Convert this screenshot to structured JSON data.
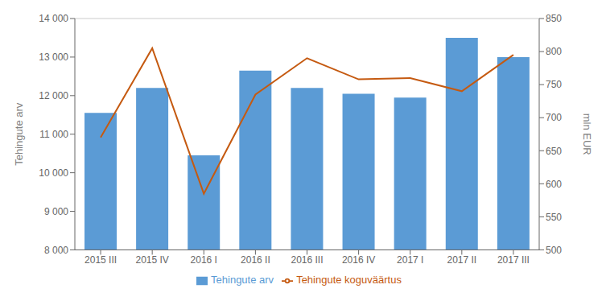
{
  "chart_data": {
    "type": "bar",
    "categories": [
      "2015 III",
      "2015 IV",
      "2016 I",
      "2016 II",
      "2016 III",
      "2016 IV",
      "2017 I",
      "2017 II",
      "2017 III"
    ],
    "series": [
      {
        "name": "Tehingute arv",
        "type": "bar",
        "color": "#5B9BD5",
        "values": [
          11550,
          12200,
          10450,
          12650,
          12200,
          12050,
          11950,
          13500,
          13000
        ]
      },
      {
        "name": "Tehingute koguväärtus",
        "type": "line",
        "color": "#C55A11",
        "axis": "y2",
        "values": [
          670,
          805,
          585,
          735,
          790,
          758,
          760,
          740,
          795
        ]
      }
    ],
    "ylabel": "Tehingute arv",
    "y2label": "mln EUR",
    "ylim": [
      8000,
      14000
    ],
    "yticks": [
      {
        "value": 8000,
        "label": "8 000"
      },
      {
        "value": 9000,
        "label": "9 000"
      },
      {
        "value": 10000,
        "label": "10 000"
      },
      {
        "value": 11000,
        "label": "11 000"
      },
      {
        "value": 12000,
        "label": "12 000"
      },
      {
        "value": 13000,
        "label": "13 000"
      },
      {
        "value": 14000,
        "label": "14 000"
      }
    ],
    "y2lim": [
      500,
      850
    ],
    "y2ticks": [
      500,
      550,
      600,
      650,
      700,
      750,
      800,
      850
    ],
    "grid": true,
    "legend": "bottom"
  }
}
